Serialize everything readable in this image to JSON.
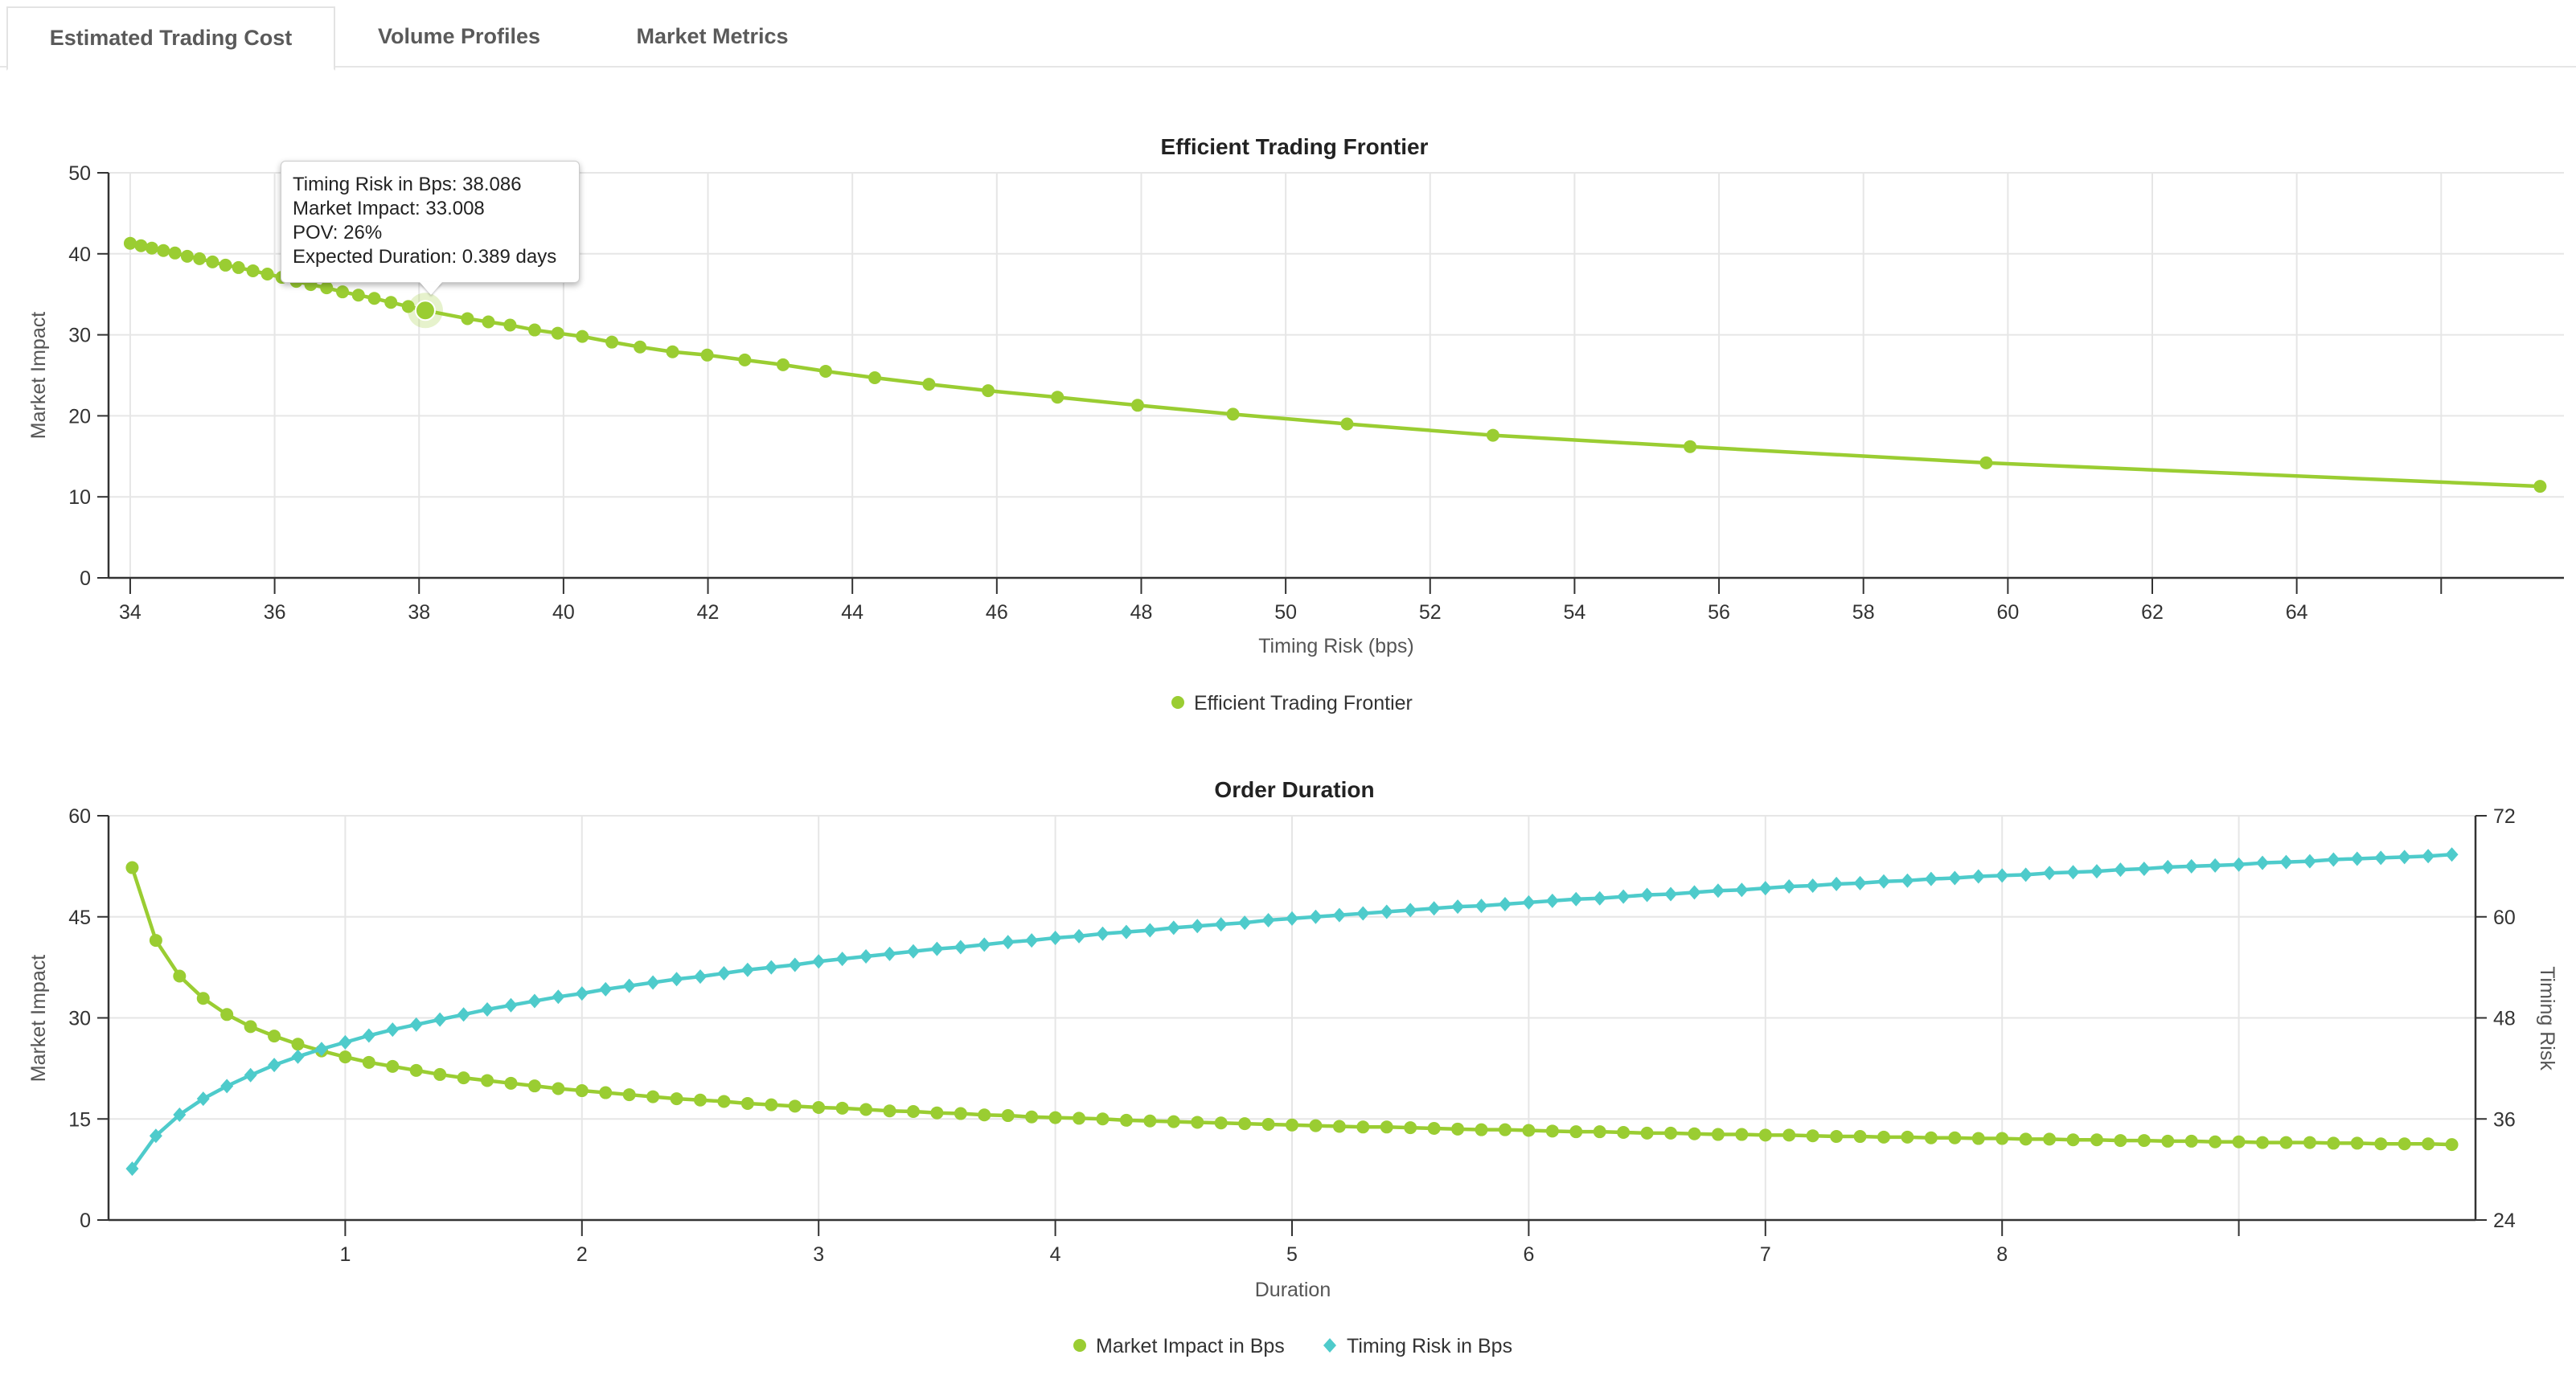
{
  "tabs": [
    {
      "label": "Estimated Trading Cost",
      "active": true
    },
    {
      "label": "Volume Profiles"
    },
    {
      "label": "Market Metrics"
    }
  ],
  "colors": {
    "impact": "#9acd32",
    "risk": "#4ecbcb",
    "axis": "#333333",
    "grid": "#e6e6e6"
  },
  "tooltip": {
    "lines": [
      "Timing Risk in Bps: 38.086",
      "Market Impact: 33.008",
      "POV: 26%",
      "Expected Duration: 0.389 days"
    ],
    "x": 38.086,
    "y": 33.008
  },
  "chart_data": [
    {
      "type": "line",
      "title": "Efficient Trading Frontier",
      "xlabel": "Timing Risk (bps)",
      "ylabel": "Market Impact",
      "xlim": [
        33.7,
        67.7
      ],
      "ylim": [
        0,
        50
      ],
      "xticks": [
        34,
        36,
        38,
        40,
        42,
        44,
        46,
        48,
        50,
        52,
        54,
        56,
        58,
        60,
        62,
        64,
        66
      ],
      "xtick_labels": [
        "34",
        "36",
        "38",
        "40",
        "42",
        "44",
        "46",
        "48",
        "50",
        "52",
        "54",
        "56",
        "58",
        "60",
        "62",
        "64",
        ""
      ],
      "yticks": [
        0,
        10,
        20,
        30,
        40,
        50
      ],
      "ytick_labels": [
        "0",
        "10",
        "20",
        "30",
        "40",
        "50"
      ],
      "legend": {
        "position": "bottom",
        "entries": [
          "Efficient Trading Frontier"
        ]
      },
      "series": [
        {
          "name": "Efficient Trading Frontier",
          "marker": "circle",
          "x": [
            34.0,
            34.15,
            34.3,
            34.46,
            34.62,
            34.79,
            34.96,
            35.14,
            35.32,
            35.5,
            35.7,
            35.9,
            36.1,
            36.3,
            36.5,
            36.72,
            36.94,
            37.16,
            37.38,
            37.61,
            37.85,
            38.086,
            38.67,
            38.96,
            39.26,
            39.6,
            39.92,
            40.26,
            40.67,
            41.06,
            41.51,
            41.99,
            42.51,
            43.04,
            43.63,
            44.31,
            45.06,
            45.88,
            46.84,
            47.95,
            49.27,
            50.85,
            52.87,
            55.6,
            59.7,
            67.37
          ],
          "y": [
            41.3,
            41.0,
            40.7,
            40.4,
            40.1,
            39.7,
            39.4,
            39.0,
            38.6,
            38.3,
            37.9,
            37.5,
            37.1,
            36.6,
            36.2,
            35.8,
            35.3,
            34.9,
            34.5,
            34.0,
            33.5,
            33.008,
            32.0,
            31.6,
            31.2,
            30.6,
            30.2,
            29.8,
            29.1,
            28.5,
            27.9,
            27.5,
            26.9,
            26.3,
            25.5,
            24.7,
            23.9,
            23.1,
            22.3,
            21.3,
            20.2,
            19.0,
            17.6,
            16.2,
            14.2,
            11.3
          ]
        }
      ]
    },
    {
      "type": "line",
      "title": "Order Duration",
      "xlabel": "Duration",
      "ylabel": "Market Impact",
      "y2label": "Timing Risk",
      "xlim": [
        0,
        10
      ],
      "ylim": [
        0,
        60
      ],
      "y2lim": [
        24,
        72
      ],
      "xticks": [
        1,
        2,
        3,
        4,
        5,
        6,
        7,
        8,
        9
      ],
      "xtick_labels": [
        "1",
        "2",
        "3",
        "4",
        "5",
        "6",
        "7",
        "8",
        ""
      ],
      "yticks": [
        0,
        15,
        30,
        45,
        60
      ],
      "ytick_labels": [
        "0",
        "15",
        "30",
        "45",
        "60"
      ],
      "y2ticks": [
        24,
        36,
        48,
        60,
        72
      ],
      "y2tick_labels": [
        "24",
        "36",
        "48",
        "60",
        "72"
      ],
      "legend": {
        "position": "bottom",
        "entries": [
          "Market Impact in Bps",
          "Timing Risk in Bps"
        ]
      },
      "x_start": 0.1,
      "x_step": 0.1,
      "series": [
        {
          "name": "Market Impact in Bps",
          "marker": "circle",
          "axis": "left",
          "y": [
            52.3,
            41.5,
            36.2,
            32.9,
            30.5,
            28.7,
            27.3,
            26.1,
            25.1,
            24.2,
            23.4,
            22.8,
            22.2,
            21.6,
            21.1,
            20.7,
            20.3,
            19.9,
            19.5,
            19.2,
            18.9,
            18.6,
            18.3,
            18.0,
            17.8,
            17.6,
            17.3,
            17.1,
            16.9,
            16.7,
            16.6,
            16.4,
            16.2,
            16.1,
            15.9,
            15.8,
            15.6,
            15.5,
            15.3,
            15.2,
            15.1,
            15.0,
            14.8,
            14.7,
            14.6,
            14.5,
            14.4,
            14.3,
            14.2,
            14.1,
            14.0,
            13.9,
            13.8,
            13.8,
            13.7,
            13.6,
            13.5,
            13.4,
            13.4,
            13.3,
            13.2,
            13.1,
            13.1,
            13.0,
            12.9,
            12.9,
            12.8,
            12.7,
            12.7,
            12.6,
            12.6,
            12.5,
            12.4,
            12.4,
            12.3,
            12.3,
            12.2,
            12.2,
            12.1,
            12.1,
            12.0,
            12.0,
            11.9,
            11.9,
            11.8,
            11.8,
            11.7,
            11.7,
            11.6,
            11.6,
            11.5,
            11.5,
            11.5,
            11.4,
            11.4,
            11.3,
            11.3,
            11.3,
            11.2
          ]
        },
        {
          "name": "Timing Risk in Bps",
          "marker": "diamond",
          "axis": "right",
          "y": [
            30.1,
            34.0,
            36.5,
            38.4,
            39.9,
            41.2,
            42.4,
            43.4,
            44.3,
            45.1,
            45.9,
            46.6,
            47.2,
            47.8,
            48.4,
            49.0,
            49.5,
            50.0,
            50.5,
            50.9,
            51.4,
            51.8,
            52.2,
            52.6,
            52.9,
            53.3,
            53.7,
            54.0,
            54.3,
            54.7,
            55.0,
            55.3,
            55.6,
            55.9,
            56.2,
            56.4,
            56.7,
            57.0,
            57.2,
            57.5,
            57.7,
            58.0,
            58.2,
            58.4,
            58.7,
            58.9,
            59.1,
            59.3,
            59.6,
            59.8,
            60.0,
            60.2,
            60.4,
            60.6,
            60.8,
            61.0,
            61.2,
            61.3,
            61.5,
            61.7,
            61.9,
            62.1,
            62.2,
            62.4,
            62.6,
            62.7,
            62.9,
            63.1,
            63.2,
            63.4,
            63.6,
            63.7,
            63.9,
            64.0,
            64.2,
            64.3,
            64.5,
            64.6,
            64.8,
            64.9,
            65.0,
            65.2,
            65.3,
            65.4,
            65.6,
            65.7,
            65.9,
            66.0,
            66.1,
            66.2,
            66.4,
            66.5,
            66.6,
            66.8,
            66.9,
            67.0,
            67.1,
            67.2,
            67.4
          ]
        }
      ]
    }
  ]
}
